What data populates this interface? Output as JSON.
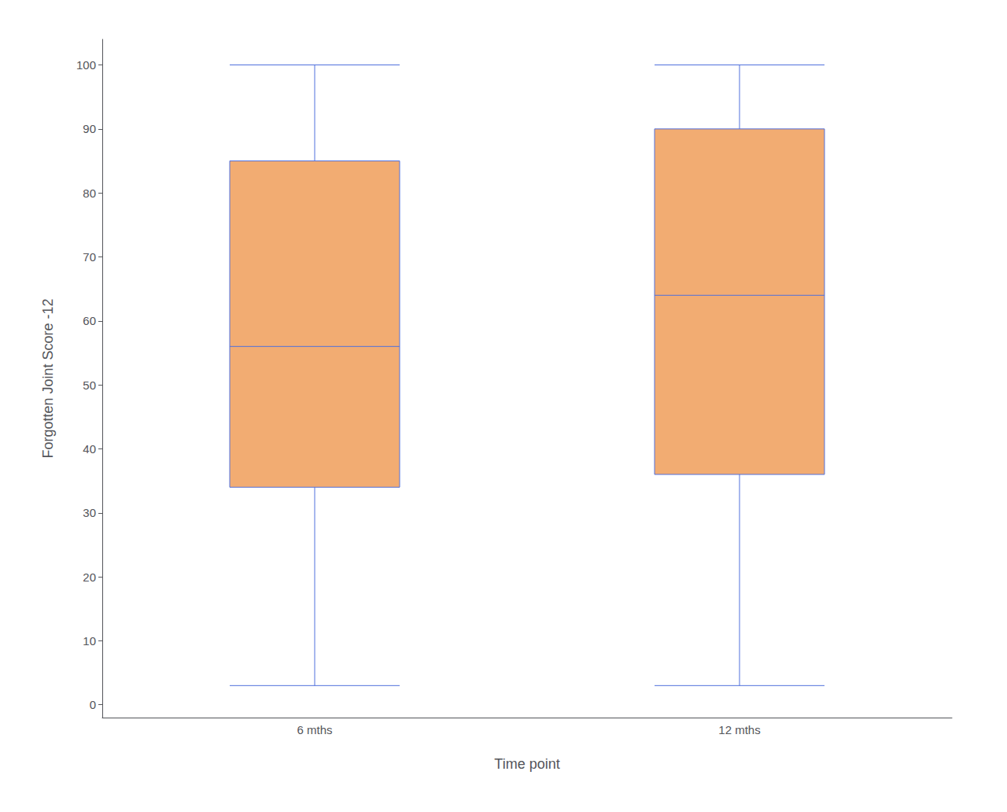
{
  "chart_data": {
    "type": "box",
    "xlabel": "Time point",
    "ylabel": "Forgotten Joint Score -12",
    "categories": [
      "6 mths",
      "12 mths"
    ],
    "values": [
      [
        3,
        34,
        56,
        85,
        100
      ],
      [
        3,
        36,
        64,
        90,
        100
      ]
    ],
    "color": "#F2AC72",
    "ylim": [
      -2,
      104
    ],
    "yticks": [
      0,
      10,
      20,
      30,
      40,
      50,
      60,
      70,
      80,
      90,
      100
    ],
    "grid": false
  }
}
